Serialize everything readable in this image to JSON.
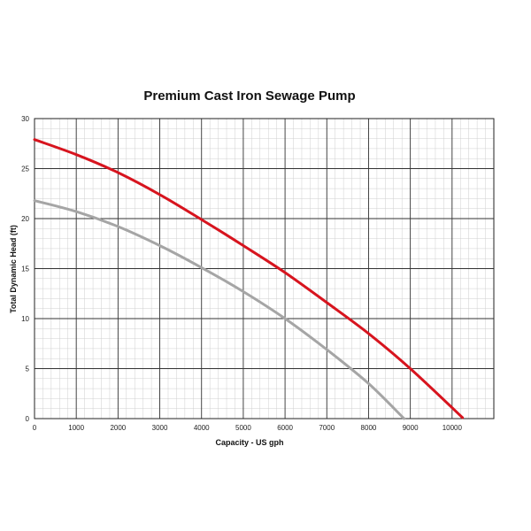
{
  "chart_data": {
    "type": "line",
    "title": "Premium Cast Iron Sewage Pump",
    "xlabel": "Capacity - US gph",
    "ylabel": "Total Dynamic Head (ft)",
    "xlim": [
      0,
      11000
    ],
    "ylim": [
      0,
      30
    ],
    "x_ticks": [
      0,
      1000,
      2000,
      3000,
      4000,
      5000,
      6000,
      7000,
      8000,
      9000,
      10000
    ],
    "y_ticks": [
      0,
      5,
      10,
      15,
      20,
      25,
      30
    ],
    "x_minor_step": 200,
    "y_minor_step": 1,
    "grid": true,
    "legend": "none",
    "series": [
      {
        "color": "#d7141e",
        "x": [
          0,
          1000,
          2000,
          3000,
          4000,
          5000,
          6000,
          7000,
          8000,
          9000,
          10250
        ],
        "y": [
          27.9,
          26.4,
          24.6,
          22.4,
          19.9,
          17.3,
          14.6,
          11.6,
          8.5,
          5.0,
          0.1
        ]
      },
      {
        "color": "#a5a5a5",
        "x": [
          0,
          1000,
          2000,
          3000,
          4000,
          5000,
          6000,
          7000,
          8000,
          8850
        ],
        "y": [
          21.8,
          20.7,
          19.2,
          17.3,
          15.1,
          12.7,
          10.0,
          6.9,
          3.5,
          0.0
        ]
      }
    ]
  }
}
